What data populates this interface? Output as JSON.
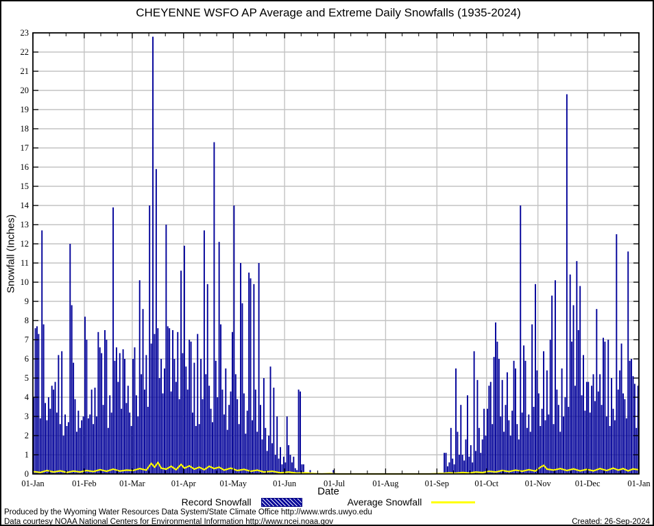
{
  "footer": {
    "line1": "Produced by the Wyoming Water Resources Data System/State Climate Office http://www.wrds.uwyo.edu",
    "line2": "Data courtesy NOAA National Centers for Environmental Information http://www.ncei.noaa.gov",
    "created": "Created: 26-Sep-2024"
  },
  "chart_data": {
    "type": "bar",
    "title": "CHEYENNE WSFO AP Average and Extreme Daily Snowfalls (1935-2024)",
    "xlabel": "Date",
    "ylabel": "Snowfall (Inches)",
    "ylim": [
      0,
      23
    ],
    "ytick_step": 1,
    "grid": true,
    "legend_position": "bottom",
    "x_unit": "day_of_year",
    "xticks": [
      "01-Jan",
      "01-Feb",
      "01-Mar",
      "01-Apr",
      "01-May",
      "01-Jun",
      "01-Jul",
      "01-Aug",
      "01-Sep",
      "01-Oct",
      "01-Nov",
      "01-Dec",
      "01-Jan"
    ],
    "month_day_offsets": [
      0,
      31,
      60,
      91,
      121,
      152,
      182,
      213,
      244,
      274,
      305,
      335,
      366
    ],
    "colors": {
      "record_bars": "#000099",
      "average_line": "#ffff00",
      "gridlines": "#c3c3c3",
      "frame": "#000000",
      "background": "#ffffff",
      "text": "#000000"
    },
    "series": [
      {
        "name": "Record Snowfall",
        "type": "bar",
        "values": [
          4.0,
          7.6,
          7.7,
          7.3,
          2.9,
          12.7,
          7.8,
          3.7,
          2.8,
          4.0,
          3.4,
          4.6,
          4.4,
          4.8,
          3.2,
          6.2,
          2.6,
          6.4,
          2.0,
          3.1,
          2.5,
          2.7,
          12.0,
          8.8,
          5.8,
          3.9,
          2.2,
          3.3,
          2.4,
          2.8,
          3.0,
          8.2,
          7.0,
          2.9,
          3.1,
          4.4,
          2.6,
          4.5,
          3.0,
          7.4,
          6.6,
          6.3,
          3.6,
          7.5,
          7.0,
          2.4,
          4.1,
          3.2,
          13.9,
          5.9,
          6.6,
          4.8,
          6.3,
          3.4,
          6.5,
          6.0,
          3.7,
          4.6,
          3.2,
          2.5,
          6.0,
          6.6,
          4.1,
          3.0,
          10.1,
          5.2,
          8.6,
          4.4,
          6.2,
          3.5,
          14.0,
          6.8,
          22.8,
          7.3,
          15.9,
          7.6,
          5.0,
          6.0,
          4.2,
          5.5,
          13.0,
          7.7,
          7.6,
          4.3,
          7.5,
          6.0,
          4.8,
          7.4,
          3.9,
          10.6,
          6.3,
          11.9,
          5.6,
          4.4,
          7.0,
          6.9,
          3.2,
          5.8,
          2.5,
          7.3,
          2.6,
          6.0,
          3.9,
          12.7,
          5.2,
          9.9,
          4.6,
          3.4,
          2.7,
          17.3,
          5.9,
          4.0,
          12.1,
          7.8,
          4.4,
          3.1,
          5.5,
          2.3,
          3.6,
          4.3,
          7.4,
          14.0,
          5.2,
          3.9,
          2.6,
          11.0,
          8.9,
          4.2,
          2.1,
          3.3,
          10.5,
          10.2,
          2.8,
          9.9,
          4.4,
          2.2,
          11.0,
          3.6,
          1.8,
          5.0,
          2.4,
          1.2,
          2.0,
          5.6,
          1.6,
          4.5,
          1.0,
          3.0,
          0.8,
          1.4,
          0.5,
          0.9,
          0.6,
          3.0,
          1.5,
          1.0,
          0.6,
          0.9,
          0.3,
          0.2,
          4.4,
          4.3,
          0.5,
          0.5,
          0,
          0,
          0,
          0.2,
          0,
          0,
          0,
          0,
          0,
          0,
          0,
          0,
          0,
          0,
          0,
          0,
          0,
          0.2,
          0,
          0,
          0,
          0,
          0,
          0,
          0,
          0,
          0,
          0,
          0,
          0,
          0,
          0,
          0,
          0,
          0,
          0,
          0,
          0,
          0,
          0,
          0,
          0,
          0,
          0,
          0,
          0,
          0,
          0,
          0,
          0,
          0,
          0,
          0,
          0,
          0,
          0,
          0,
          0,
          0,
          0,
          0,
          0,
          0,
          0,
          0,
          0,
          0,
          0,
          0,
          0,
          0,
          0,
          0,
          0,
          0,
          0,
          0,
          0,
          0,
          0,
          0,
          0,
          0,
          0,
          1.1,
          1.1,
          0.4,
          0.6,
          2.4,
          0.8,
          0.5,
          5.5,
          2.2,
          1.0,
          3.6,
          1.0,
          0.7,
          1.8,
          4.1,
          0.9,
          1.5,
          0.6,
          6.4,
          1.2,
          4.9,
          2.4,
          1.1,
          1.8,
          3.4,
          2.0,
          3.4,
          4.6,
          4.8,
          2.6,
          6.1,
          7.9,
          6.9,
          6.0,
          3.0,
          4.9,
          2.2,
          3.6,
          5.3,
          2.8,
          2.0,
          3.3,
          5.9,
          5.5,
          2.6,
          1.8,
          14.0,
          3.2,
          6.7,
          5.9,
          2.4,
          3.1,
          2.2,
          7.8,
          3.5,
          9.9,
          5.4,
          4.2,
          2.5,
          3.4,
          6.4,
          2.8,
          5.4,
          3.1,
          7.0,
          9.3,
          2.6,
          10.1,
          4.4,
          3.6,
          2.2,
          5.5,
          3.0,
          4.0,
          19.8,
          3.5,
          10.4,
          6.9,
          8.8,
          4.6,
          11.1,
          7.5,
          9.8,
          4.1,
          6.2,
          3.3,
          4.8,
          4.8,
          3.2,
          4.6,
          5.2,
          3.8,
          8.6,
          4.3,
          5.2,
          3.6,
          7.1,
          6.9,
          3.0,
          7.0,
          2.5,
          5.0,
          3.4,
          2.8,
          12.5,
          4.4,
          5.4,
          6.8,
          4.2,
          3.9,
          2.9,
          11.6,
          5.9,
          6.0,
          5.1,
          4.7,
          2.4,
          4.6
        ]
      },
      {
        "name": "Average Snowfall",
        "type": "line",
        "points": [
          [
            1,
            0.12
          ],
          [
            5,
            0.08
          ],
          [
            9,
            0.18
          ],
          [
            13,
            0.1
          ],
          [
            17,
            0.16
          ],
          [
            21,
            0.08
          ],
          [
            25,
            0.15
          ],
          [
            29,
            0.1
          ],
          [
            33,
            0.18
          ],
          [
            37,
            0.12
          ],
          [
            41,
            0.22
          ],
          [
            45,
            0.14
          ],
          [
            49,
            0.25
          ],
          [
            53,
            0.15
          ],
          [
            57,
            0.2
          ],
          [
            61,
            0.18
          ],
          [
            65,
            0.28
          ],
          [
            69,
            0.2
          ],
          [
            72,
            0.55
          ],
          [
            74,
            0.35
          ],
          [
            76,
            0.6
          ],
          [
            78,
            0.3
          ],
          [
            81,
            0.25
          ],
          [
            84,
            0.4
          ],
          [
            87,
            0.22
          ],
          [
            90,
            0.5
          ],
          [
            92,
            0.3
          ],
          [
            95,
            0.42
          ],
          [
            98,
            0.25
          ],
          [
            101,
            0.35
          ],
          [
            104,
            0.22
          ],
          [
            107,
            0.4
          ],
          [
            110,
            0.28
          ],
          [
            113,
            0.35
          ],
          [
            116,
            0.2
          ],
          [
            120,
            0.3
          ],
          [
            124,
            0.18
          ],
          [
            128,
            0.24
          ],
          [
            132,
            0.14
          ],
          [
            136,
            0.2
          ],
          [
            140,
            0.1
          ],
          [
            145,
            0.14
          ],
          [
            150,
            0.06
          ],
          [
            155,
            0.1
          ],
          [
            160,
            0.04
          ],
          [
            165,
            0.06
          ],
          [
            170,
            0.02
          ],
          [
            175,
            0.0
          ],
          [
            180,
            0.02
          ],
          [
            185,
            0.0
          ],
          [
            200,
            0.0
          ],
          [
            220,
            0.0
          ],
          [
            240,
            0.0
          ],
          [
            248,
            0.03
          ],
          [
            252,
            0.06
          ],
          [
            256,
            0.04
          ],
          [
            260,
            0.08
          ],
          [
            264,
            0.05
          ],
          [
            268,
            0.1
          ],
          [
            272,
            0.07
          ],
          [
            276,
            0.14
          ],
          [
            280,
            0.1
          ],
          [
            284,
            0.18
          ],
          [
            288,
            0.12
          ],
          [
            292,
            0.2
          ],
          [
            296,
            0.14
          ],
          [
            300,
            0.22
          ],
          [
            304,
            0.15
          ],
          [
            307,
            0.35
          ],
          [
            309,
            0.45
          ],
          [
            311,
            0.25
          ],
          [
            315,
            0.2
          ],
          [
            319,
            0.28
          ],
          [
            323,
            0.18
          ],
          [
            327,
            0.26
          ],
          [
            331,
            0.16
          ],
          [
            335,
            0.24
          ],
          [
            339,
            0.16
          ],
          [
            343,
            0.28
          ],
          [
            347,
            0.18
          ],
          [
            351,
            0.3
          ],
          [
            354,
            0.2
          ],
          [
            357,
            0.28
          ],
          [
            360,
            0.16
          ],
          [
            363,
            0.26
          ],
          [
            366,
            0.22
          ]
        ]
      }
    ]
  }
}
